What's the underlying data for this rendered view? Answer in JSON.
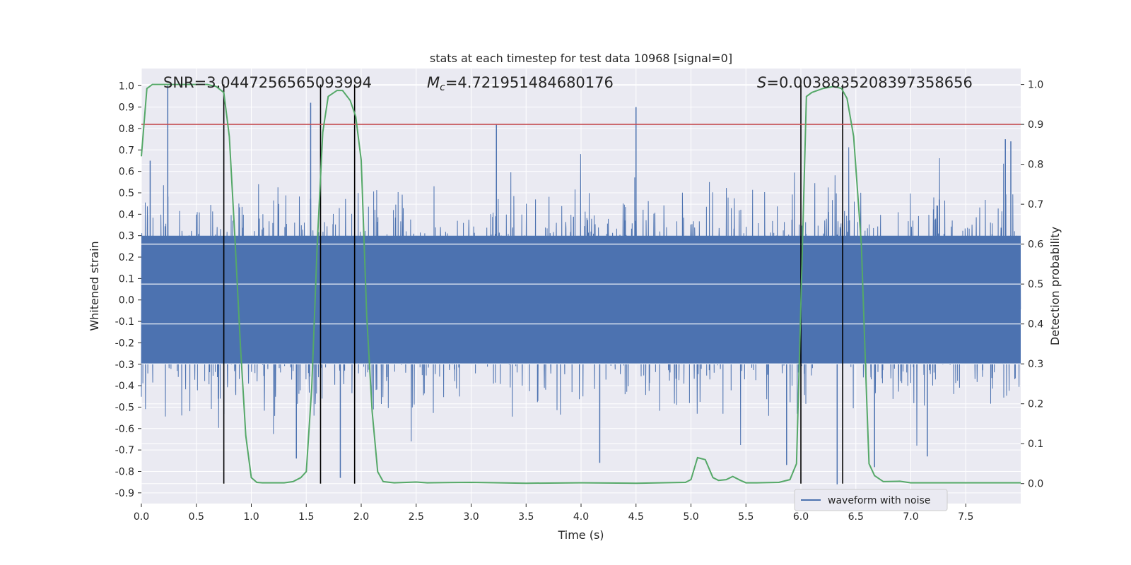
{
  "chart_data": {
    "type": "line",
    "title": "stats at each timestep for test data 10968 [signal=0]",
    "xlabel": "Time (s)",
    "ylabel_left": "Whitened strain",
    "ylabel_right": "Detection probability",
    "xlim": [
      0,
      8.0
    ],
    "ylim_left": [
      -0.95,
      1.08
    ],
    "ylim_right": [
      -0.05,
      1.04
    ],
    "x_ticks": [
      0.0,
      0.5,
      1.0,
      1.5,
      2.0,
      2.5,
      3.0,
      3.5,
      4.0,
      4.5,
      5.0,
      5.5,
      6.0,
      6.5,
      7.0,
      7.5
    ],
    "x_tick_labels": [
      "0.0",
      "0.5",
      "1.0",
      "1.5",
      "2.0",
      "2.5",
      "3.0",
      "3.5",
      "4.0",
      "4.5",
      "5.0",
      "5.5",
      "6.0",
      "6.5",
      "7.0",
      "7.5"
    ],
    "y_left_ticks": [
      1.0,
      0.9,
      0.8,
      0.7,
      0.6,
      0.5,
      0.4,
      0.3,
      0.2,
      0.1,
      0.0,
      -0.1,
      -0.2,
      -0.3,
      -0.4,
      -0.5,
      -0.6,
      -0.7,
      -0.8,
      -0.9
    ],
    "y_left_tick_labels": [
      "1.0",
      "0.9",
      "0.8",
      "0.7",
      "0.6",
      "0.5",
      "0.4",
      "0.3",
      "0.2",
      "0.1",
      "0.0",
      "-0.1",
      "-0.2",
      "-0.3",
      "-0.4",
      "-0.5",
      "-0.6",
      "-0.7",
      "-0.8",
      "-0.9"
    ],
    "y_right_ticks": [
      1.0,
      0.9,
      0.8,
      0.7,
      0.6,
      0.5,
      0.4,
      0.3,
      0.2,
      0.1,
      0.0
    ],
    "y_right_tick_labels": [
      "1.0",
      "0.9",
      "0.8",
      "0.7",
      "0.6",
      "0.5",
      "0.4",
      "0.3",
      "0.2",
      "0.1",
      "0.0"
    ],
    "grid": true,
    "legend": {
      "placement": "lower-right",
      "entries": [
        "waveform with noise"
      ]
    },
    "annotations": {
      "snr": "SNR=3.0447256565093994",
      "mc_symbol": "M",
      "mc_sub": "c",
      "mc_value": "=4.721951484680176",
      "s_symbol": "S",
      "s_value": "=0.0038835208397358656"
    },
    "colors": {
      "waveform": "#4c72b0",
      "probability": "#55a868",
      "threshold": "#c44e52",
      "markers": "#000000",
      "plot_bg": "#eaeaf2",
      "grid": "#ffffff"
    },
    "threshold_probability": 0.9,
    "marker_times": [
      0.75,
      1.63,
      1.94,
      6.0,
      6.38
    ],
    "waveform_spikes": [
      {
        "t": 0.24,
        "v": 1.0
      },
      {
        "t": 0.08,
        "v": 0.65
      },
      {
        "t": 1.54,
        "v": 0.92
      },
      {
        "t": 1.41,
        "v": -0.74
      },
      {
        "t": 1.81,
        "v": -0.83
      },
      {
        "t": 3.23,
        "v": 0.82
      },
      {
        "t": 4.5,
        "v": 0.9
      },
      {
        "t": 4.17,
        "v": -0.76
      },
      {
        "t": 5.87,
        "v": -0.77
      },
      {
        "t": 6.33,
        "v": -0.86
      },
      {
        "t": 6.67,
        "v": -0.78
      },
      {
        "t": 7.15,
        "v": -0.73
      },
      {
        "t": 7.86,
        "v": 0.75
      },
      {
        "t": 7.91,
        "v": 0.74
      }
    ],
    "series": [
      {
        "name": "waveform with noise",
        "style": "noise",
        "sample_rate_hz": 512,
        "std": 0.2,
        "core_amplitude": 0.3
      },
      {
        "style": "probability",
        "x": [
          0.0,
          0.05,
          0.1,
          0.2,
          0.3,
          0.4,
          0.5,
          0.6,
          0.68,
          0.75,
          0.8,
          0.85,
          0.9,
          0.95,
          1.0,
          1.05,
          1.1,
          1.2,
          1.3,
          1.38,
          1.45,
          1.5,
          1.55,
          1.6,
          1.65,
          1.7,
          1.78,
          1.83,
          1.9,
          1.95,
          2.0,
          2.05,
          2.1,
          2.15,
          2.2,
          2.3,
          2.5,
          2.6,
          3.0,
          3.5,
          4.0,
          4.5,
          4.95,
          5.0,
          5.06,
          5.13,
          5.2,
          5.25,
          5.32,
          5.38,
          5.45,
          5.5,
          5.6,
          5.8,
          5.9,
          5.96,
          6.0,
          6.05,
          6.1,
          6.2,
          6.3,
          6.37,
          6.42,
          6.48,
          6.55,
          6.6,
          6.62,
          6.67,
          6.75,
          6.9,
          7.0,
          7.5,
          8.0
        ],
        "values": [
          0.82,
          0.99,
          1.0,
          1.0,
          1.0,
          1.0,
          1.0,
          1.0,
          0.995,
          0.98,
          0.87,
          0.62,
          0.35,
          0.12,
          0.015,
          0.003,
          0.002,
          0.002,
          0.002,
          0.005,
          0.015,
          0.03,
          0.24,
          0.6,
          0.88,
          0.97,
          0.985,
          0.985,
          0.96,
          0.92,
          0.81,
          0.42,
          0.18,
          0.03,
          0.005,
          0.002,
          0.004,
          0.002,
          0.003,
          0.001,
          0.002,
          0.001,
          0.003,
          0.01,
          0.065,
          0.06,
          0.015,
          0.008,
          0.01,
          0.018,
          0.008,
          0.002,
          0.002,
          0.003,
          0.01,
          0.05,
          0.45,
          0.97,
          0.98,
          0.99,
          0.995,
          0.99,
          0.965,
          0.87,
          0.6,
          0.2,
          0.05,
          0.02,
          0.005,
          0.006,
          0.002,
          0.002,
          0.002
        ]
      }
    ]
  }
}
